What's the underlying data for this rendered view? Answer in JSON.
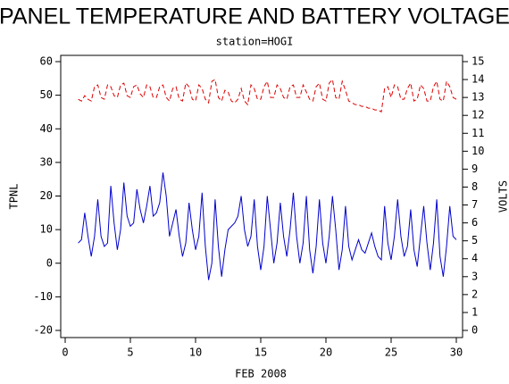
{
  "chart_data": {
    "type": "line",
    "title": "PANEL TEMPERATURE AND BATTERY VOLTAGE",
    "subtitle": "station=HOGI",
    "x_label": "FEB 2008",
    "y_label": "TPNL",
    "y2_label": "VOLTS",
    "xlim": [
      0,
      30
    ],
    "xticks": [
      0,
      5,
      10,
      15,
      20,
      25,
      30
    ],
    "ylim": [
      -20,
      60
    ],
    "yticks": [
      -20,
      -10,
      0,
      10,
      20,
      30,
      40,
      50,
      60
    ],
    "y2lim": [
      0,
      15
    ],
    "y2ticks": [
      0,
      1,
      2,
      3,
      4,
      5,
      6,
      7,
      8,
      9,
      10,
      11,
      12,
      13,
      14,
      15
    ],
    "x": [
      1,
      1.25,
      1.5,
      1.75,
      2,
      2.25,
      2.5,
      2.75,
      3,
      3.25,
      3.5,
      3.75,
      4,
      4.25,
      4.5,
      4.75,
      5,
      5.25,
      5.5,
      5.75,
      6,
      6.25,
      6.5,
      6.75,
      7,
      7.25,
      7.5,
      7.75,
      8,
      8.25,
      8.5,
      8.75,
      9,
      9.25,
      9.5,
      9.75,
      10,
      10.25,
      10.5,
      10.75,
      11,
      11.25,
      11.5,
      11.75,
      12,
      12.25,
      12.5,
      12.75,
      13,
      13.25,
      13.5,
      13.75,
      14,
      14.25,
      14.5,
      14.75,
      15,
      15.25,
      15.5,
      15.75,
      16,
      16.25,
      16.5,
      16.75,
      17,
      17.25,
      17.5,
      17.75,
      18,
      18.25,
      18.5,
      18.75,
      19,
      19.25,
      19.5,
      19.75,
      20,
      20.25,
      20.5,
      20.75,
      21,
      21.25,
      21.5,
      21.75,
      22,
      22.25,
      22.5,
      22.75,
      23,
      23.25,
      23.5,
      23.75,
      24,
      24.25,
      24.5,
      24.75,
      25,
      25.25,
      25.5,
      25.75,
      26,
      26.25,
      26.5,
      26.75,
      27,
      27.25,
      27.5,
      27.75,
      28,
      28.25,
      28.5,
      28.75,
      29,
      29.25,
      29.5,
      29.75,
      30
    ],
    "series": [
      {
        "name": "TPNL",
        "color": "#0000cc",
        "dash": false,
        "axis": "y",
        "values": [
          6,
          7,
          15,
          8,
          2,
          8,
          19,
          8,
          5,
          6,
          23,
          12,
          4,
          10,
          24,
          14,
          11,
          12,
          22,
          16,
          12,
          17,
          23,
          14,
          15,
          18,
          27,
          20,
          8,
          12,
          16,
          8,
          2,
          6,
          18,
          10,
          4,
          8,
          21,
          5,
          -5,
          0,
          19,
          5,
          -4,
          4,
          10,
          11,
          12,
          14,
          20,
          10,
          5,
          8,
          19,
          5,
          -2,
          5,
          20,
          10,
          0,
          6,
          18,
          8,
          2,
          10,
          21,
          8,
          0,
          6,
          20,
          4,
          -3,
          5,
          19,
          6,
          0,
          8,
          20,
          10,
          -2,
          4,
          17,
          5,
          1,
          4,
          7,
          4,
          3,
          6,
          9,
          5,
          2,
          1,
          17,
          6,
          1,
          8,
          19,
          8,
          2,
          5,
          16,
          4,
          -1,
          8,
          17,
          6,
          -2,
          6,
          19,
          2,
          -4,
          5,
          17,
          8,
          7
        ]
      },
      {
        "name": "VOLTS",
        "color": "#dd0000",
        "dash": true,
        "axis": "y2",
        "values": [
          12.9,
          12.8,
          13.1,
          12.9,
          12.8,
          13.6,
          13.7,
          13.0,
          12.9,
          13.7,
          13.6,
          13.1,
          13.0,
          13.7,
          13.8,
          13.1,
          13.0,
          13.6,
          13.7,
          13.2,
          13.0,
          13.7,
          13.6,
          13.0,
          13.0,
          13.6,
          13.7,
          13.0,
          12.8,
          13.5,
          13.6,
          12.9,
          12.8,
          13.8,
          13.6,
          12.9,
          12.8,
          13.7,
          13.5,
          12.9,
          12.7,
          13.9,
          14.0,
          13.0,
          12.8,
          13.4,
          13.3,
          12.8,
          12.7,
          12.9,
          13.5,
          12.8,
          12.6,
          13.7,
          13.5,
          12.9,
          12.9,
          13.6,
          13.9,
          13.0,
          13.0,
          13.7,
          13.5,
          13.0,
          12.9,
          13.6,
          13.7,
          13.0,
          13.0,
          13.7,
          13.3,
          12.9,
          12.8,
          13.6,
          13.8,
          12.9,
          12.8,
          13.8,
          14.0,
          13.0,
          12.9,
          13.9,
          13.4,
          12.8,
          12.7,
          12.6,
          12.6,
          12.5,
          12.5,
          12.4,
          12.4,
          12.3,
          12.3,
          12.2,
          13.5,
          13.6,
          13.0,
          13.7,
          13.6,
          12.9,
          12.9,
          13.5,
          13.8,
          12.8,
          12.9,
          13.7,
          13.5,
          12.8,
          12.8,
          13.6,
          13.9,
          12.9,
          12.8,
          13.9,
          13.6,
          13.0,
          12.9
        ]
      }
    ]
  }
}
